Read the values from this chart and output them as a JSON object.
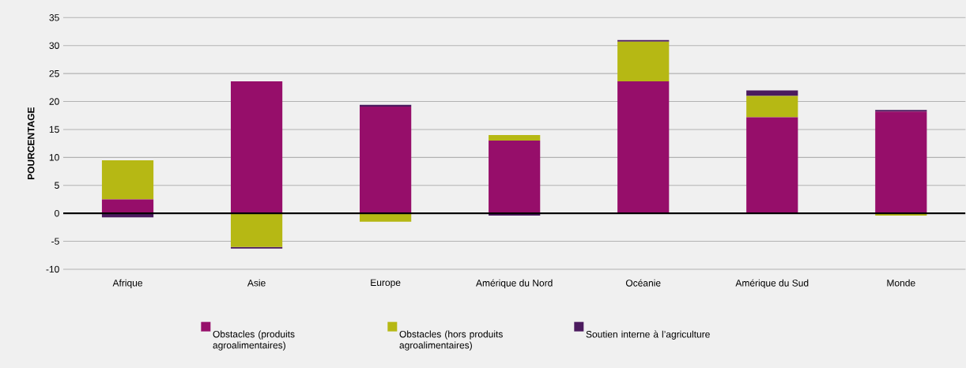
{
  "chart_data": {
    "type": "bar",
    "stacked": true,
    "ylabel": "POURCENTAGE",
    "categories": [
      "Afrique",
      "Asie",
      "Europe",
      "Amérique du Nord",
      "Océanie",
      "Amérique du Sud",
      "Monde"
    ],
    "series": [
      {
        "name": "Obstacles (produits agroalimentaires)",
        "color": "#960e6a",
        "values": [
          2.5,
          23.6,
          19.1,
          13.0,
          23.6,
          17.2,
          18.2
        ]
      },
      {
        "name": "Obstacles (hors produits agroalimentaires)",
        "color": "#b6b814",
        "values": [
          7.0,
          -6.0,
          -1.5,
          1.0,
          7.1,
          3.8,
          -0.4
        ]
      },
      {
        "name": "Soutien interne à l’agriculture",
        "color": "#4b1a5e",
        "values": [
          -0.7,
          -0.3,
          0.3,
          -0.4,
          0.3,
          1.0,
          0.3
        ]
      }
    ],
    "ylim": [
      -10,
      35
    ],
    "yticks": [
      -10,
      -5,
      0,
      5,
      10,
      15,
      20,
      25,
      30,
      35
    ],
    "grid": "y",
    "legend": "bottom"
  }
}
